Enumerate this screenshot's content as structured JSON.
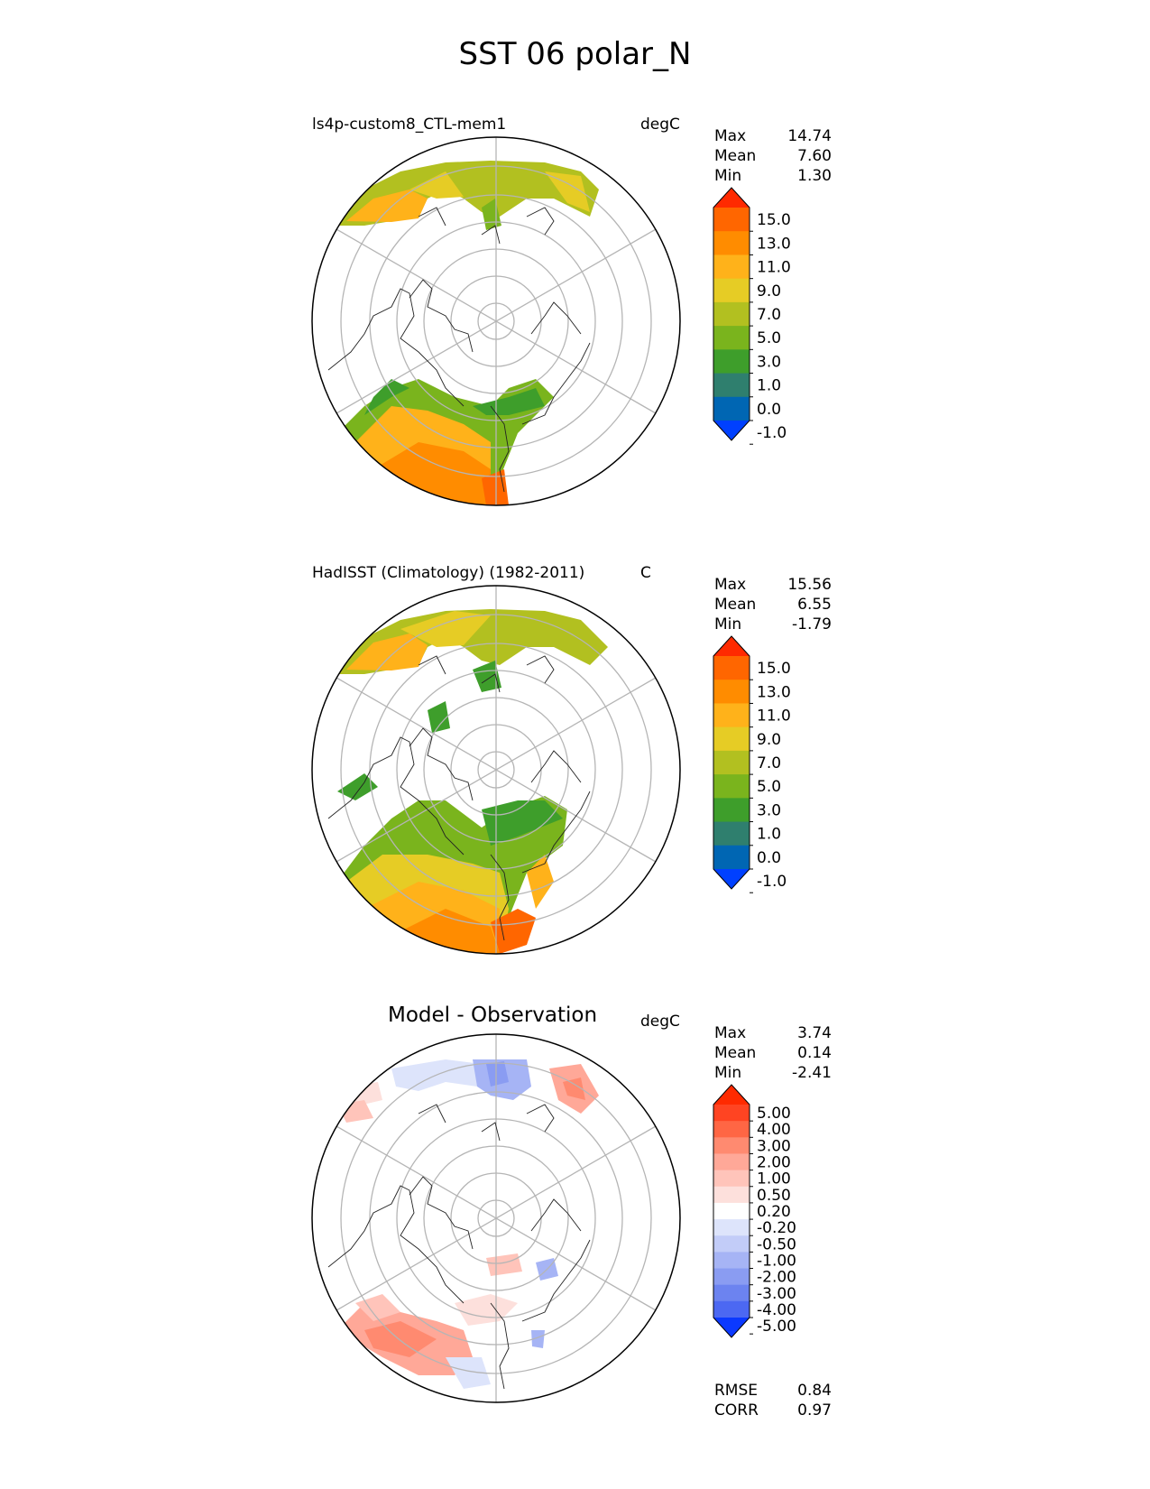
{
  "title": "SST 06 polar_N",
  "panels": [
    {
      "title": "ls4p-custom8_CTL-mem1",
      "units": "degC",
      "stats": [
        {
          "label": "Max",
          "value": "14.74"
        },
        {
          "label": "Mean",
          "value": "7.60"
        },
        {
          "label": "Min",
          "value": "1.30"
        }
      ],
      "colorbar": {
        "labels": [
          "15.0",
          "13.0",
          "11.0",
          "9.0",
          "7.0",
          "5.0",
          "3.0",
          "1.0",
          "0.0",
          "-1.0"
        ],
        "colors_top_to_bottom": [
          "#ff2a00",
          "#ff6600",
          "#ff8c00",
          "#ffb21a",
          "#e6cc25",
          "#b2c020",
          "#7ab41d",
          "#3e9e2b",
          "#2f7f6e",
          "#0066b3",
          "#0040ff"
        ]
      }
    },
    {
      "title": "HadISST (Climatology) (1982-2011)",
      "units": "C",
      "stats": [
        {
          "label": "Max",
          "value": "15.56"
        },
        {
          "label": "Mean",
          "value": "6.55"
        },
        {
          "label": "Min",
          "value": "-1.79"
        }
      ],
      "colorbar": {
        "labels": [
          "15.0",
          "13.0",
          "11.0",
          "9.0",
          "7.0",
          "5.0",
          "3.0",
          "1.0",
          "0.0",
          "-1.0"
        ],
        "colors_top_to_bottom": [
          "#ff2a00",
          "#ff6600",
          "#ff8c00",
          "#ffb21a",
          "#e6cc25",
          "#b2c020",
          "#7ab41d",
          "#3e9e2b",
          "#2f7f6e",
          "#0066b3",
          "#0040ff"
        ]
      }
    },
    {
      "title": "Model - Observation",
      "units": "degC",
      "stats": [
        {
          "label": "Max",
          "value": "3.74"
        },
        {
          "label": "Mean",
          "value": "0.14"
        },
        {
          "label": "Min",
          "value": "-2.41"
        }
      ],
      "colorbar": {
        "labels": [
          "5.00",
          "4.00",
          "3.00",
          "2.00",
          "1.00",
          "0.50",
          "0.20",
          "-0.20",
          "-0.50",
          "-1.00",
          "-2.00",
          "-3.00",
          "-4.00",
          "-5.00"
        ],
        "colors_top_to_bottom": [
          "#ff2a00",
          "#ff4422",
          "#ff6644",
          "#ff8a70",
          "#ffa898",
          "#ffc4ba",
          "#fde0dc",
          "#ffffff",
          "#dde4fb",
          "#c2ccf8",
          "#a6b4f5",
          "#8a9cf2",
          "#6c83f0",
          "#4c68f2",
          "#0b39ff"
        ]
      }
    }
  ],
  "metrics": [
    {
      "label": "RMSE",
      "value": "0.84"
    },
    {
      "label": "CORR",
      "value": "0.97"
    }
  ]
}
